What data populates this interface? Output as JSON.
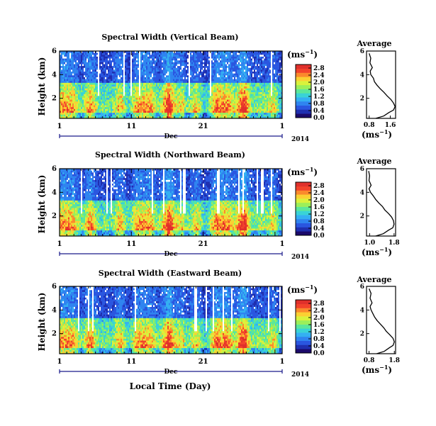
{
  "figure": {
    "x_axis_label": "Local Time (Day)",
    "month_label": "Dec",
    "year_label": "2014",
    "y_axis_label": "Height (km)",
    "unit_label": "(ms",
    "unit_exponent": "−1",
    "avg_xlabel": "(ms",
    "avg_xlabel_exp": "−1",
    "avg_title": "Average"
  },
  "colormap": [
    "#1b0a6b",
    "#1f2fb0",
    "#2a56e0",
    "#2f84f0",
    "#34b0f2",
    "#39d3d6",
    "#5be79a",
    "#9bef5a",
    "#d9f23c",
    "#fbd032",
    "#fb8a2c",
    "#f2432b",
    "#e0302b"
  ],
  "chart_data": [
    {
      "type": "heatmap",
      "title": "Spectral Width (Vertical Beam)",
      "xlabel": "Local Time (Day)",
      "ylabel": "Height (km)",
      "x_ticks": [
        "1",
        "11",
        "21",
        "1"
      ],
      "x_range_days": [
        1,
        32
      ],
      "y_ticks": [
        "2",
        "4",
        "6"
      ],
      "ylim": [
        0.3,
        6
      ],
      "colorbar": {
        "unit": "(ms−1)",
        "ticks": [
          "0.0",
          "0.4",
          "0.8",
          "1.2",
          "1.6",
          "2.0",
          "2.4",
          "2.8"
        ],
        "range": [
          0,
          3.0
        ]
      },
      "average_profile": {
        "title": "Average",
        "xlabel": "(ms−1)",
        "x_ticks": [
          "0.8",
          "1.6"
        ],
        "xlim": [
          0.7,
          1.8
        ],
        "y_ticks": [
          "2",
          "4",
          "6"
        ],
        "heights": [
          0.3,
          0.5,
          0.8,
          1.0,
          1.3,
          1.6,
          1.9,
          2.2,
          2.5,
          2.8,
          3.1,
          3.4,
          3.7,
          4.0,
          4.3,
          4.6,
          5.0,
          5.4,
          5.8
        ],
        "values": [
          1.05,
          1.35,
          1.55,
          1.72,
          1.78,
          1.72,
          1.62,
          1.48,
          1.36,
          1.22,
          1.1,
          1.0,
          0.96,
          0.86,
          0.84,
          0.92,
          0.83,
          0.86,
          0.8
        ]
      }
    },
    {
      "type": "heatmap",
      "title": "Spectral Width (Northward Beam)",
      "xlabel": "Local Time (Day)",
      "ylabel": "Height (km)",
      "x_ticks": [
        "1",
        "11",
        "21",
        "1"
      ],
      "x_range_days": [
        1,
        32
      ],
      "y_ticks": [
        "2",
        "4",
        "6"
      ],
      "ylim": [
        0.3,
        6
      ],
      "colorbar": {
        "unit": "(ms−1)",
        "ticks": [
          "0.0",
          "0.4",
          "0.8",
          "1.2",
          "1.6",
          "2.0",
          "2.4",
          "2.8"
        ],
        "range": [
          0,
          3.0
        ]
      },
      "average_profile": {
        "title": "Average",
        "xlabel": "(ms−1)",
        "x_ticks": [
          "1.0",
          "1.8"
        ],
        "xlim": [
          0.9,
          1.85
        ],
        "y_ticks": [
          "2",
          "4",
          "6"
        ],
        "heights": [
          0.3,
          0.5,
          0.8,
          1.0,
          1.3,
          1.6,
          1.9,
          2.2,
          2.5,
          2.8,
          3.1,
          3.4,
          3.7,
          4.0,
          4.3,
          4.6,
          5.0,
          5.4,
          5.8
        ],
        "values": [
          1.2,
          1.45,
          1.62,
          1.76,
          1.8,
          1.78,
          1.72,
          1.62,
          1.5,
          1.42,
          1.3,
          1.2,
          1.12,
          1.03,
          0.98,
          1.05,
          0.98,
          1.0,
          0.97
        ]
      }
    },
    {
      "type": "heatmap",
      "title": "Spectral Width (Eastward Beam)",
      "xlabel": "Local Time (Day)",
      "ylabel": "Height (km)",
      "x_ticks": [
        "1",
        "11",
        "21",
        "1"
      ],
      "x_range_days": [
        1,
        32
      ],
      "y_ticks": [
        "2",
        "4",
        "6"
      ],
      "ylim": [
        0.3,
        6
      ],
      "colorbar": {
        "unit": "(ms−1)",
        "ticks": [
          "0.0",
          "0.4",
          "0.8",
          "1.2",
          "1.6",
          "2.0",
          "2.4",
          "2.8"
        ],
        "range": [
          0,
          3.0
        ]
      },
      "average_profile": {
        "title": "Average",
        "xlabel": "(ms−1)",
        "x_ticks": [
          "0.8",
          "1.8"
        ],
        "xlim": [
          0.7,
          1.85
        ],
        "y_ticks": [
          "2",
          "4",
          "6"
        ],
        "heights": [
          0.3,
          0.5,
          0.8,
          1.0,
          1.3,
          1.6,
          1.9,
          2.2,
          2.5,
          2.8,
          3.1,
          3.4,
          3.7,
          4.0,
          4.3,
          4.6,
          5.0,
          5.4,
          5.8
        ],
        "values": [
          1.1,
          1.4,
          1.6,
          1.75,
          1.8,
          1.75,
          1.62,
          1.48,
          1.38,
          1.25,
          1.12,
          1.02,
          0.95,
          0.88,
          0.84,
          0.92,
          0.84,
          0.88,
          0.8
        ]
      }
    }
  ]
}
